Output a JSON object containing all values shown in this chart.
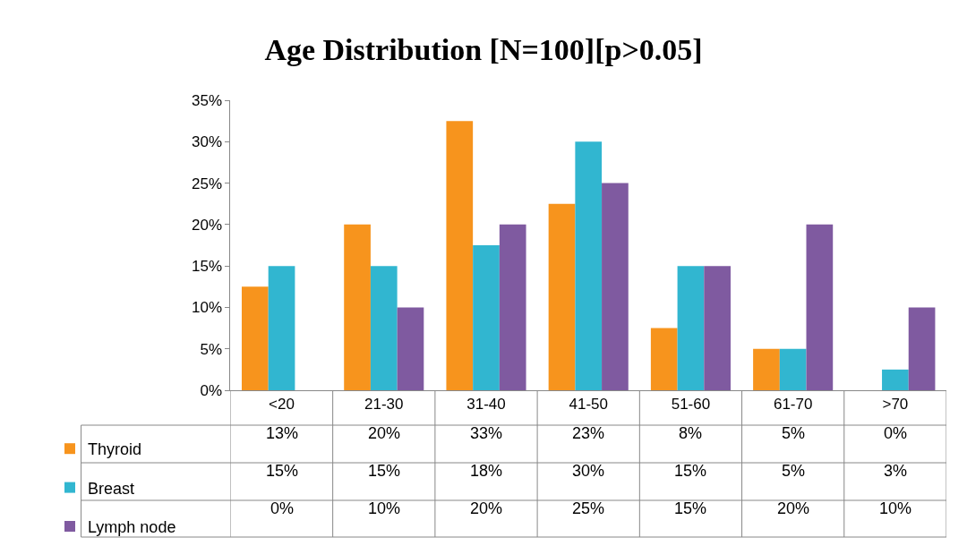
{
  "chart_data": {
    "type": "bar",
    "title": "Age Distribution [N=100][p>0.05]",
    "categories": [
      "<20",
      "21-30",
      "31-40",
      "41-50",
      "51-60",
      "61-70",
      ">70"
    ],
    "series": [
      {
        "name": "Thyroid",
        "color": "#f7941d",
        "values": [
          12.5,
          20,
          32.5,
          22.5,
          7.5,
          5,
          0
        ],
        "value_labels": [
          "13%",
          "20%",
          "33%",
          "23%",
          "8%",
          "5%",
          "0%"
        ]
      },
      {
        "name": "Breast",
        "color": "#31b6d0",
        "values": [
          15,
          15,
          17.5,
          30,
          15,
          5,
          2.5
        ],
        "value_labels": [
          "15%",
          "15%",
          "18%",
          "30%",
          "15%",
          "5%",
          "3%"
        ]
      },
      {
        "name": "Lymph node",
        "color": "#7f5aa0",
        "values": [
          0,
          10,
          20,
          25,
          15,
          20,
          10
        ],
        "value_labels": [
          "0%",
          "10%",
          "20%",
          "25%",
          "15%",
          "20%",
          "10%"
        ]
      }
    ],
    "ylim": [
      0,
      35
    ],
    "yticks": [
      {
        "value": 0,
        "label": "0%"
      },
      {
        "value": 5,
        "label": "5%"
      },
      {
        "value": 10,
        "label": "10%"
      },
      {
        "value": 15,
        "label": "15%"
      },
      {
        "value": 20,
        "label": "20%"
      },
      {
        "value": 25,
        "label": "25%"
      },
      {
        "value": 30,
        "label": "30%"
      },
      {
        "value": 35,
        "label": "35%"
      }
    ],
    "legend": "bottom left"
  }
}
